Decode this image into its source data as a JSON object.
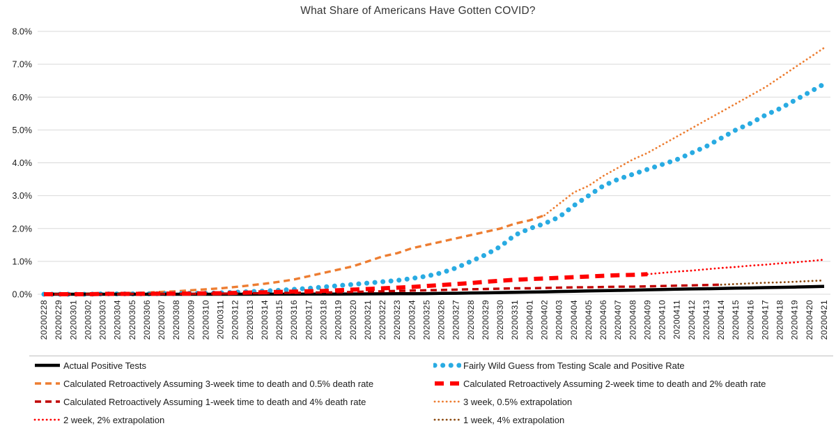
{
  "chart_data": {
    "type": "line",
    "title": "What Share of Americans Have Gotten COVID?",
    "xlabel": "",
    "ylabel": "",
    "ylim": [
      0,
      8
    ],
    "y_unit": "%",
    "grid": "horizontal",
    "grid_color": "#d9d9d9",
    "legend_position": "bottom-two-columns",
    "y_tick_labels": [
      "0.0%",
      "1.0%",
      "2.0%",
      "3.0%",
      "4.0%",
      "5.0%",
      "6.0%",
      "7.0%",
      "8.0%"
    ],
    "x_tick_labels": [
      "20200228",
      "20200229",
      "20200301",
      "20200302",
      "20200303",
      "20200304",
      "20200305",
      "20200306",
      "20200307",
      "20200308",
      "20200309",
      "20200310",
      "20200311",
      "20200312",
      "20200313",
      "20200314",
      "20200315",
      "20200316",
      "20200317",
      "20200318",
      "20200319",
      "20200320",
      "20200321",
      "20200322",
      "20200323",
      "20200324",
      "20200325",
      "20200326",
      "20200327",
      "20200328",
      "20200329",
      "20200330",
      "20200331",
      "20200401",
      "20200402",
      "20200403",
      "20200404",
      "20200405",
      "20200406",
      "20200407",
      "20200408",
      "20200409",
      "20200410",
      "20200411",
      "20200412",
      "20200413",
      "20200414",
      "20200415",
      "20200416",
      "20200417",
      "20200418",
      "20200419",
      "20200420",
      "20200421"
    ],
    "series": [
      {
        "key": "actual",
        "name": "Actual Positive Tests",
        "color": "#000000",
        "line_style": "solid",
        "stroke_width": 4.5,
        "values": [
          0,
          0,
          0,
          0,
          0,
          0,
          0,
          0,
          0,
          0,
          0,
          0,
          0,
          0.001,
          0.001,
          0.002,
          0.002,
          0.003,
          0.004,
          0.005,
          0.006,
          0.008,
          0.01,
          0.012,
          0.014,
          0.017,
          0.02,
          0.025,
          0.03,
          0.037,
          0.043,
          0.05,
          0.057,
          0.065,
          0.073,
          0.082,
          0.091,
          0.1,
          0.108,
          0.117,
          0.126,
          0.135,
          0.145,
          0.153,
          0.161,
          0.168,
          0.175,
          0.184,
          0.192,
          0.201,
          0.21,
          0.218,
          0.229,
          0.24
        ]
      },
      {
        "key": "wild-guess",
        "name": "Fairly Wild Guess from Testing Scale and Positive Rate",
        "color": "#29ABE2",
        "line_style": "dotted-heavy",
        "stroke_width": 7,
        "values": [
          0,
          0,
          0,
          0,
          0.01,
          0.01,
          0.01,
          0.01,
          0.02,
          0.02,
          0.03,
          0.03,
          0.04,
          0.06,
          0.08,
          0.1,
          0.12,
          0.15,
          0.18,
          0.22,
          0.26,
          0.3,
          0.34,
          0.38,
          0.42,
          0.48,
          0.55,
          0.65,
          0.8,
          1.0,
          1.2,
          1.45,
          1.8,
          2.0,
          2.15,
          2.35,
          2.7,
          3.0,
          3.3,
          3.5,
          3.65,
          3.8,
          3.95,
          4.1,
          4.3,
          4.5,
          4.75,
          5.0,
          5.2,
          5.45,
          5.65,
          5.9,
          6.15,
          6.4
        ]
      },
      {
        "key": "retro-3wk-05pct",
        "name": "Calculated Retroactively Assuming 3-week time to death and 0.5% death rate",
        "color": "#ED7D31",
        "line_style": "dashed",
        "stroke_width": 3.4,
        "values": [
          0.01,
          0.01,
          0.01,
          0.02,
          0.02,
          0.03,
          0.04,
          0.05,
          0.07,
          0.09,
          0.12,
          0.15,
          0.18,
          0.22,
          0.27,
          0.32,
          0.38,
          0.45,
          0.55,
          0.65,
          0.75,
          0.85,
          1.0,
          1.15,
          1.25,
          1.4,
          1.5,
          1.6,
          1.7,
          1.8,
          1.9,
          2.0,
          2.15,
          2.25,
          2.4,
          null,
          null,
          null,
          null,
          null,
          null,
          null,
          null,
          null,
          null,
          null,
          null,
          null,
          null,
          null,
          null,
          null,
          null,
          null
        ]
      },
      {
        "key": "retro-2wk-2pct",
        "name": "Calculated Retroactively Assuming 2-week time to death and 2% death rate",
        "color": "#FF0000",
        "line_style": "dashed-heavy",
        "stroke_width": 6,
        "values": [
          0,
          0,
          0,
          0,
          0.01,
          0.01,
          0.01,
          0.01,
          0.02,
          0.02,
          0.02,
          0.03,
          0.03,
          0.04,
          0.05,
          0.06,
          0.07,
          0.08,
          0.09,
          0.1,
          0.12,
          0.14,
          0.16,
          0.18,
          0.2,
          0.22,
          0.25,
          0.28,
          0.31,
          0.34,
          0.38,
          0.41,
          0.44,
          0.46,
          0.48,
          0.5,
          0.52,
          0.54,
          0.56,
          0.58,
          0.59,
          0.61,
          null,
          null,
          null,
          null,
          null,
          null,
          null,
          null,
          null,
          null,
          null,
          null
        ]
      },
      {
        "key": "retro-1wk-4pct",
        "name": "Calculated Retroactively Assuming 1-week time to death and 4% death rate",
        "color": "#C00000",
        "line_style": "dashed",
        "stroke_width": 3.4,
        "values": [
          0,
          0,
          0,
          0,
          0,
          0,
          0.01,
          0.01,
          0.01,
          0.01,
          0.01,
          0.02,
          0.02,
          0.02,
          0.03,
          0.03,
          0.04,
          0.04,
          0.05,
          0.05,
          0.06,
          0.07,
          0.08,
          0.09,
          0.1,
          0.11,
          0.12,
          0.13,
          0.14,
          0.15,
          0.16,
          0.17,
          0.18,
          0.18,
          0.19,
          0.2,
          0.21,
          0.21,
          0.22,
          0.23,
          0.23,
          0.24,
          0.25,
          0.26,
          0.27,
          0.28,
          0.29,
          null,
          null,
          null,
          null,
          null,
          null,
          null
        ]
      },
      {
        "key": "extrap-3wk-05pct",
        "name": "3 week, 0.5% extrapolation",
        "color": "#ED7D31",
        "line_style": "dotted",
        "stroke_width": 2.8,
        "values": [
          null,
          null,
          null,
          null,
          null,
          null,
          null,
          null,
          null,
          null,
          null,
          null,
          null,
          null,
          null,
          null,
          null,
          null,
          null,
          null,
          null,
          null,
          null,
          null,
          null,
          null,
          null,
          null,
          null,
          null,
          null,
          null,
          null,
          null,
          2.4,
          2.75,
          3.1,
          3.3,
          3.6,
          3.85,
          4.1,
          4.3,
          4.55,
          4.8,
          5.05,
          5.3,
          5.55,
          5.8,
          6.05,
          6.3,
          6.6,
          6.9,
          7.2,
          7.5
        ]
      },
      {
        "key": "extrap-2wk-2pct",
        "name": "2 week, 2% extrapolation",
        "color": "#FF0000",
        "line_style": "dotted",
        "stroke_width": 2.8,
        "values": [
          null,
          null,
          null,
          null,
          null,
          null,
          null,
          null,
          null,
          null,
          null,
          null,
          null,
          null,
          null,
          null,
          null,
          null,
          null,
          null,
          null,
          null,
          null,
          null,
          null,
          null,
          null,
          null,
          null,
          null,
          null,
          null,
          null,
          null,
          null,
          null,
          null,
          null,
          null,
          null,
          null,
          0.61,
          0.65,
          0.69,
          0.72,
          0.76,
          0.8,
          0.83,
          0.87,
          0.9,
          0.94,
          0.97,
          1.01,
          1.05
        ]
      },
      {
        "key": "extrap-1wk-4pct",
        "name": "1 week, 4% extrapolation",
        "color": "#8C4A10",
        "line_style": "dotted",
        "stroke_width": 2.8,
        "values": [
          null,
          null,
          null,
          null,
          null,
          null,
          null,
          null,
          null,
          null,
          null,
          null,
          null,
          null,
          null,
          null,
          null,
          null,
          null,
          null,
          null,
          null,
          null,
          null,
          null,
          null,
          null,
          null,
          null,
          null,
          null,
          null,
          null,
          null,
          null,
          null,
          null,
          null,
          null,
          null,
          null,
          null,
          null,
          null,
          null,
          null,
          0.29,
          0.31,
          0.33,
          0.35,
          0.36,
          0.38,
          0.4,
          0.42
        ]
      }
    ]
  }
}
